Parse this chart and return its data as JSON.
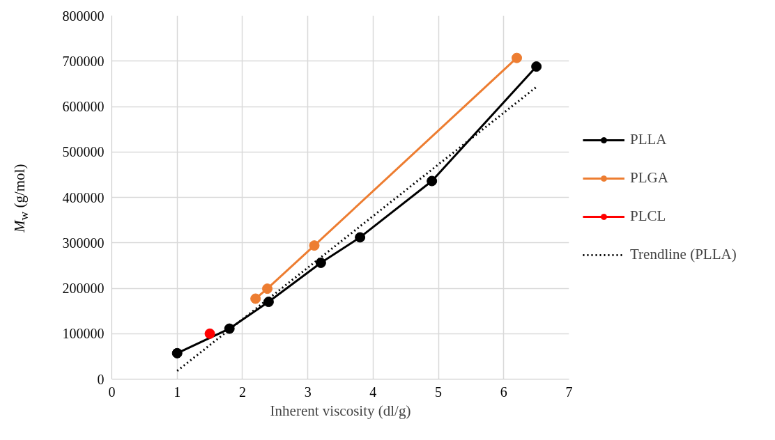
{
  "chart_data": {
    "type": "line",
    "xlabel": "Inherent viscosity (dl/g)",
    "ylabel": "M$_{w}$ (g/mol)",
    "xlim": [
      0,
      7
    ],
    "xticks": [
      0,
      1,
      2,
      3,
      4,
      5,
      6,
      7
    ],
    "ylim": [
      0,
      800000
    ],
    "yticks": [
      0,
      100000,
      200000,
      300000,
      400000,
      500000,
      600000,
      700000,
      800000
    ],
    "grid": true,
    "legend": "right",
    "marker": "circle",
    "series": [
      {
        "name": "PLLA",
        "color": "#000000",
        "x": [
          1,
          1.8,
          2.4,
          3.2,
          3.8,
          4.9,
          6.5
        ],
        "values": [
          57000,
          111000,
          170000,
          256000,
          312000,
          436000,
          688000
        ]
      },
      {
        "name": "PLGA",
        "color": "#ed7d31",
        "x": [
          2.2,
          2.38,
          3.1,
          6.2
        ],
        "values": [
          177000,
          199000,
          294000,
          707000
        ]
      },
      {
        "name": "PLCL",
        "color": "#ff0000",
        "x": [
          1.5
        ],
        "values": [
          100000
        ]
      },
      {
        "name": "Trendline (PLLA)",
        "color": "#000000",
        "x": [
          1,
          6.5
        ],
        "values": [
          18000,
          643000
        ],
        "marker": "none",
        "line_style": "dotted"
      }
    ]
  }
}
